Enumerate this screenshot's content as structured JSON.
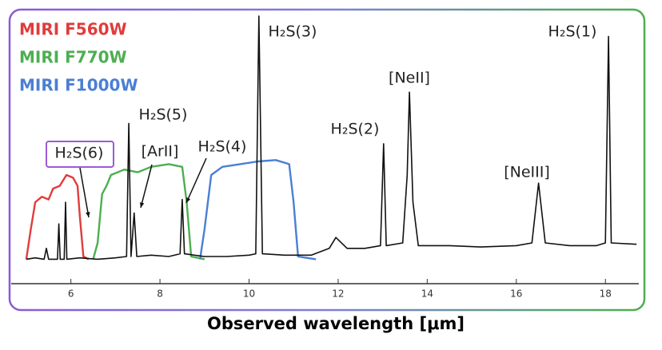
{
  "chart_data": {
    "type": "line",
    "xlabel": "Observed wavelength [μm]",
    "xlim": [
      4.66,
      18.75
    ],
    "xticks": [
      6,
      8,
      10,
      12,
      14,
      16,
      18
    ],
    "ylim": [
      0,
      1
    ],
    "series": [
      {
        "color": "#111111",
        "x": [
          5.0,
          5.2,
          5.4,
          5.45,
          5.5,
          5.7,
          5.73,
          5.76,
          5.85,
          5.88,
          5.91,
          6.2,
          6.6,
          7.0,
          7.25,
          7.3,
          7.35,
          7.42,
          7.48,
          7.8,
          8.2,
          8.45,
          8.5,
          8.55,
          9.0,
          9.5,
          10.0,
          10.15,
          10.22,
          10.3,
          10.8,
          11.4,
          11.8,
          11.95,
          12.2,
          12.6,
          12.95,
          13.02,
          13.08,
          13.45,
          13.55,
          13.6,
          13.68,
          13.8,
          14.5,
          15.2,
          16.0,
          16.35,
          16.5,
          16.65,
          17.2,
          17.8,
          18.0,
          18.07,
          18.13,
          18.7
        ],
        "values": [
          0.09,
          0.095,
          0.09,
          0.13,
          0.09,
          0.09,
          0.22,
          0.09,
          0.09,
          0.3,
          0.09,
          0.095,
          0.09,
          0.095,
          0.1,
          0.59,
          0.1,
          0.26,
          0.1,
          0.105,
          0.1,
          0.11,
          0.31,
          0.11,
          0.1,
          0.1,
          0.105,
          0.11,
          0.985,
          0.11,
          0.105,
          0.105,
          0.13,
          0.17,
          0.13,
          0.13,
          0.14,
          0.515,
          0.14,
          0.15,
          0.4,
          0.705,
          0.3,
          0.14,
          0.14,
          0.135,
          0.14,
          0.15,
          0.37,
          0.15,
          0.14,
          0.14,
          0.15,
          0.91,
          0.15,
          0.145
        ]
      },
      {
        "name": "MIRI F560W",
        "color": "#e03c3c",
        "x": [
          5.0,
          5.1,
          5.2,
          5.35,
          5.5,
          5.6,
          5.75,
          5.9,
          6.05,
          6.15,
          6.2,
          6.28,
          6.4
        ],
        "values": [
          0.09,
          0.2,
          0.3,
          0.32,
          0.31,
          0.35,
          0.36,
          0.4,
          0.39,
          0.36,
          0.25,
          0.1,
          0.09
        ]
      },
      {
        "name": "MIRI F770W",
        "color": "#4caf50",
        "x": [
          6.5,
          6.6,
          6.7,
          6.8,
          6.9,
          7.2,
          7.5,
          7.8,
          8.2,
          8.5,
          8.6,
          8.7,
          9.0
        ],
        "values": [
          0.09,
          0.15,
          0.33,
          0.36,
          0.4,
          0.42,
          0.41,
          0.43,
          0.44,
          0.43,
          0.3,
          0.1,
          0.09
        ]
      },
      {
        "name": "MIRI F1000W",
        "color": "#4a7fd4",
        "x": [
          8.9,
          9.0,
          9.15,
          9.4,
          9.8,
          10.2,
          10.6,
          10.9,
          11.0,
          11.1,
          11.5
        ],
        "values": [
          0.09,
          0.2,
          0.4,
          0.43,
          0.44,
          0.45,
          0.455,
          0.44,
          0.3,
          0.1,
          0.09
        ]
      }
    ],
    "annotations": [
      "H₂S(3)",
      "H₂S(1)",
      "[NeII]",
      "H₂S(5)",
      "H₂S(2)",
      "H₂S(4)",
      "[ArII]",
      "H₂S(6)",
      "[NeIII]"
    ]
  }
}
